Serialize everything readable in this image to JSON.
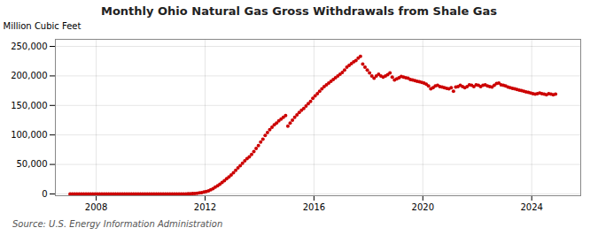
{
  "chart_data": {
    "type": "scatter",
    "title": "Monthly Ohio Natural Gas Gross Withdrawals from Shale Gas",
    "ylabel": "Million Cubic Feet",
    "source": "Source: U.S. Energy Information Administration",
    "color": "#cc0000",
    "grid": true,
    "xlim": [
      2006.5,
      2025.8
    ],
    "xticks": [
      2008,
      2012,
      2016,
      2020,
      2024
    ],
    "ylim": [
      -3000,
      262000
    ],
    "yticks": [
      0,
      {
        "value": 50000,
        "label": "50,000"
      },
      {
        "value": 100000,
        "label": "100,000"
      },
      {
        "value": 150000,
        "label": "150,000"
      },
      {
        "value": 200000,
        "label": "200,000"
      },
      {
        "value": 250000,
        "label": "250,000"
      }
    ],
    "x": [
      2007.0416666666667,
      2007.125,
      2007.2083333333333,
      2007.2916666666667,
      2007.375,
      2007.4583333333333,
      2007.5416666666667,
      2007.625,
      2007.7083333333333,
      2007.7916666666667,
      2007.875,
      2007.9583333333333,
      2008.0416666666667,
      2008.125,
      2008.2083333333333,
      2008.2916666666667,
      2008.375,
      2008.4583333333333,
      2008.5416666666667,
      2008.625,
      2008.7083333333333,
      2008.7916666666667,
      2008.875,
      2008.9583333333333,
      2009.0416666666667,
      2009.125,
      2009.2083333333333,
      2009.2916666666667,
      2009.375,
      2009.4583333333333,
      2009.5416666666667,
      2009.625,
      2009.7083333333333,
      2009.7916666666667,
      2009.875,
      2009.9583333333333,
      2010.0416666666667,
      2010.125,
      2010.2083333333333,
      2010.2916666666667,
      2010.375,
      2010.4583333333333,
      2010.5416666666667,
      2010.625,
      2010.7083333333333,
      2010.7916666666667,
      2010.875,
      2010.9583333333333,
      2011.0416666666667,
      2011.125,
      2011.2083333333333,
      2011.2916666666667,
      2011.375,
      2011.4583333333333,
      2011.5416666666667,
      2011.625,
      2011.7083333333333,
      2011.7916666666667,
      2011.875,
      2011.9583333333333,
      2012.0416666666667,
      2012.125,
      2012.2083333333333,
      2012.2916666666667,
      2012.375,
      2012.4583333333333,
      2012.5416666666667,
      2012.625,
      2012.7083333333333,
      2012.7916666666667,
      2012.875,
      2012.9583333333333,
      2013.0416666666667,
      2013.125,
      2013.2083333333333,
      2013.2916666666667,
      2013.375,
      2013.4583333333333,
      2013.5416666666667,
      2013.625,
      2013.7083333333333,
      2013.7916666666667,
      2013.875,
      2013.9583333333333,
      2014.0416666666667,
      2014.125,
      2014.2083333333333,
      2014.2916666666667,
      2014.375,
      2014.4583333333333,
      2014.5416666666667,
      2014.625,
      2014.7083333333333,
      2014.7916666666667,
      2014.875,
      2014.9583333333333,
      2015.0416666666667,
      2015.125,
      2015.2083333333333,
      2015.2916666666667,
      2015.375,
      2015.4583333333333,
      2015.5416666666667,
      2015.625,
      2015.7083333333333,
      2015.7916666666667,
      2015.875,
      2015.9583333333333,
      2016.0416666666667,
      2016.125,
      2016.2083333333333,
      2016.2916666666667,
      2016.375,
      2016.4583333333333,
      2016.5416666666667,
      2016.625,
      2016.7083333333333,
      2016.7916666666667,
      2016.875,
      2016.9583333333333,
      2017.0416666666667,
      2017.125,
      2017.2083333333333,
      2017.2916666666667,
      2017.375,
      2017.4583333333333,
      2017.5416666666667,
      2017.625,
      2017.7083333333333,
      2017.7916666666667,
      2017.875,
      2017.9583333333333,
      2018.0416666666667,
      2018.125,
      2018.2083333333333,
      2018.2916666666667,
      2018.375,
      2018.4583333333333,
      2018.5416666666667,
      2018.625,
      2018.7083333333333,
      2018.7916666666667,
      2018.875,
      2018.9583333333333,
      2019.0416666666667,
      2019.125,
      2019.2083333333333,
      2019.2916666666667,
      2019.375,
      2019.4583333333333,
      2019.5416666666667,
      2019.625,
      2019.7083333333333,
      2019.7916666666667,
      2019.875,
      2019.9583333333333,
      2020.0416666666667,
      2020.125,
      2020.2083333333333,
      2020.2916666666667,
      2020.375,
      2020.4583333333333,
      2020.5416666666667,
      2020.625,
      2020.7083333333333,
      2020.7916666666667,
      2020.875,
      2020.9583333333333,
      2021.0416666666667,
      2021.125,
      2021.2083333333333,
      2021.2916666666667,
      2021.375,
      2021.4583333333333,
      2021.5416666666667,
      2021.625,
      2021.7083333333333,
      2021.7916666666667,
      2021.875,
      2021.9583333333333,
      2022.0416666666667,
      2022.125,
      2022.2083333333333,
      2022.2916666666667,
      2022.375,
      2022.4583333333333,
      2022.5416666666667,
      2022.625,
      2022.7083333333333,
      2022.7916666666667,
      2022.875,
      2022.9583333333333,
      2023.0416666666667,
      2023.125,
      2023.2083333333333,
      2023.2916666666667,
      2023.375,
      2023.4583333333333,
      2023.5416666666667,
      2023.625,
      2023.7083333333333,
      2023.7916666666667,
      2023.875,
      2023.9583333333333,
      2024.0416666666667,
      2024.125,
      2024.2083333333333,
      2024.2916666666667,
      2024.375,
      2024.4583333333333,
      2024.5416666666667,
      2024.625,
      2024.7083333333333,
      2024.7916666666667,
      2024.875
    ],
    "values": [
      0,
      0,
      0,
      0,
      0,
      0,
      0,
      0,
      0,
      0,
      0,
      0,
      0,
      0,
      0,
      0,
      0,
      0,
      0,
      0,
      0,
      0,
      0,
      0,
      0,
      0,
      0,
      0,
      0,
      0,
      0,
      0,
      0,
      0,
      0,
      0,
      0,
      0,
      0,
      0,
      0,
      0,
      0,
      0,
      0,
      0,
      0,
      0,
      50,
      80,
      100,
      150,
      250,
      400,
      600,
      900,
      1300,
      1800,
      2400,
      3200,
      4200,
      5400,
      7000,
      9000,
      11500,
      14000,
      16500,
      19500,
      22500,
      26000,
      29000,
      32000,
      36000,
      40000,
      44000,
      48000,
      52000,
      56000,
      60000,
      63000,
      67000,
      72000,
      77000,
      82000,
      88000,
      93000,
      99000,
      104000,
      109000,
      113000,
      117000,
      120000,
      124000,
      127000,
      130000,
      133000,
      115000,
      120000,
      125000,
      130000,
      134000,
      138000,
      142000,
      145000,
      149000,
      153000,
      157000,
      162000,
      166000,
      170000,
      174000,
      178000,
      182000,
      185000,
      188000,
      191000,
      194000,
      197000,
      200000,
      203000,
      206000,
      210000,
      215000,
      218000,
      221000,
      224000,
      226000,
      230000,
      233000,
      220000,
      215000,
      210000,
      205000,
      200000,
      196000,
      200000,
      203000,
      200000,
      198000,
      200000,
      202000,
      205000,
      198000,
      193000,
      195000,
      197000,
      199000,
      198000,
      197000,
      196000,
      194000,
      193000,
      192000,
      191000,
      190000,
      189000,
      188000,
      186000,
      183000,
      178000,
      180000,
      183000,
      184000,
      182000,
      181000,
      180000,
      179000,
      178000,
      180000,
      174000,
      181000,
      182000,
      184000,
      182000,
      180000,
      182000,
      185000,
      184000,
      182000,
      185000,
      184000,
      182000,
      184000,
      185000,
      183000,
      182000,
      181000,
      184000,
      187000,
      188000,
      185000,
      184000,
      183000,
      181000,
      180000,
      179000,
      178000,
      177000,
      176000,
      175000,
      174000,
      173000,
      172000,
      171000,
      170000,
      169000,
      170000,
      171000,
      170000,
      169000,
      168000,
      170000,
      169000,
      168000,
      169000
    ]
  }
}
